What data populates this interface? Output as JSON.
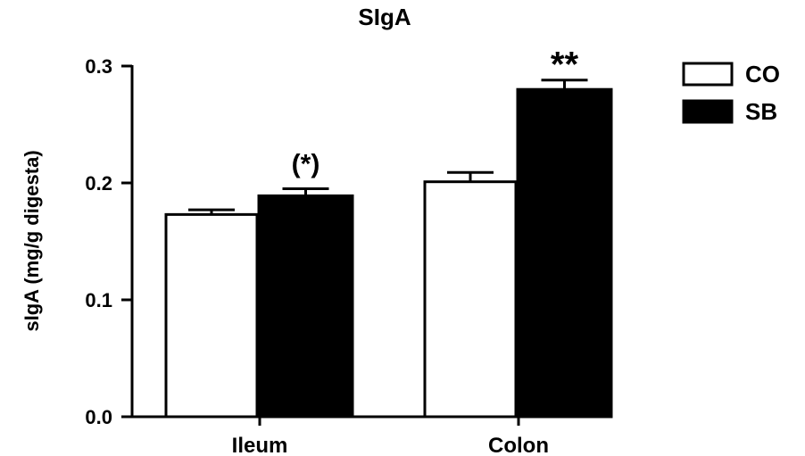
{
  "chart_data": {
    "type": "bar",
    "title": "SIgA",
    "xlabel": "",
    "ylabel": "sIgA (mg/g digesta)",
    "ylim": [
      0,
      0.3
    ],
    "yticks": [
      0.0,
      0.1,
      0.2,
      0.3
    ],
    "ytick_labels": [
      "0.0",
      "0.1",
      "0.2",
      "0.3"
    ],
    "categories": [
      "Ileum",
      "Colon"
    ],
    "series": [
      {
        "name": "CO",
        "color": "#ffffff",
        "values": [
          0.173,
          0.201
        ],
        "errors": [
          0.004,
          0.008
        ]
      },
      {
        "name": "SB",
        "color": "#000000",
        "values": [
          0.189,
          0.28
        ],
        "errors": [
          0.006,
          0.008
        ]
      }
    ],
    "annotations": [
      {
        "category": "Ileum",
        "series": "SB",
        "text": "(*)"
      },
      {
        "category": "Colon",
        "series": "SB",
        "text": "**"
      }
    ],
    "grid": false,
    "legend_position": "top-right"
  }
}
